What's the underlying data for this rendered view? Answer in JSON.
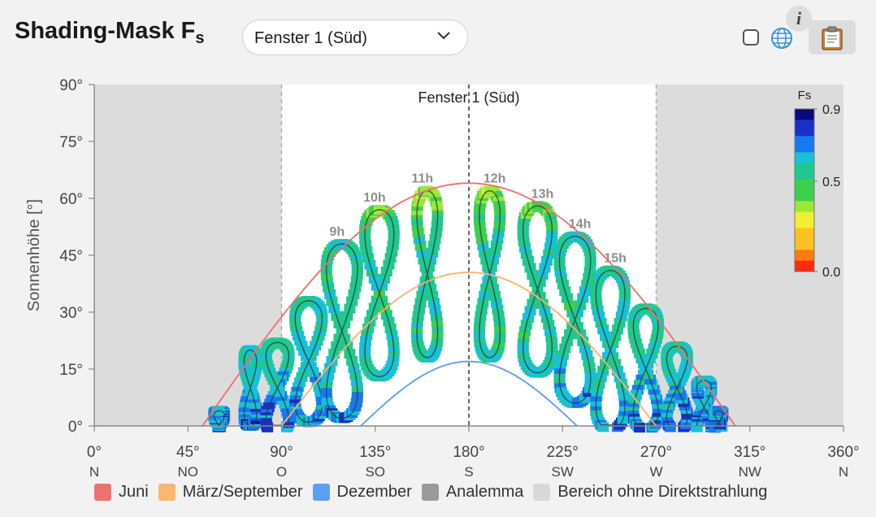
{
  "header": {
    "title_main": "Shading-Mask F",
    "title_sub": "s",
    "window_select": "Fenster 1 (Süd)"
  },
  "toolbar": {
    "checkbox_checked": false,
    "globe_icon": "globe-icon",
    "info_icon": "info-icon",
    "info_label": "i",
    "clipboard_icon": "clipboard-icon"
  },
  "chart_data": {
    "type": "heatmap",
    "title": "Fenster 1 (Süd)",
    "xlabel": "",
    "ylabel": "Sonnenhöhe [°]",
    "xlim": [
      0,
      360
    ],
    "ylim": [
      0,
      90
    ],
    "x_ticks": [
      0,
      45,
      90,
      135,
      180,
      225,
      270,
      315,
      360
    ],
    "x_tick_labels": [
      "0°",
      "45°",
      "90°",
      "135°",
      "180°",
      "225°",
      "270°",
      "315°",
      "360°"
    ],
    "x_direction_labels": [
      "N",
      "NO",
      "O",
      "SO",
      "S",
      "SW",
      "W",
      "NW",
      "N"
    ],
    "y_ticks": [
      0,
      15,
      30,
      45,
      60,
      75,
      90
    ],
    "y_tick_labels": [
      "0°",
      "15°",
      "30°",
      "45°",
      "60°",
      "75°",
      "90°"
    ],
    "no_direct_radiation_ranges": [
      [
        0,
        90
      ],
      [
        270,
        360
      ]
    ],
    "reference_lines_azimuth": [
      90,
      180,
      270
    ],
    "sun_paths": [
      {
        "name": "Juni",
        "color": "#f26b6b",
        "sunrise_az": 52,
        "sunset_az": 308,
        "max_alt": 64
      },
      {
        "name": "März/September",
        "color": "#f7b366",
        "sunrise_az": 90,
        "sunset_az": 270,
        "max_alt": 40.5
      },
      {
        "name": "Dezember",
        "color": "#5b9cf0",
        "sunrise_az": 128,
        "sunset_az": 232,
        "max_alt": 17
      }
    ],
    "analemmas": [
      {
        "label": "",
        "az": 60,
        "alt": 0,
        "daz": 5,
        "dalt": 4
      },
      {
        "label": "",
        "az": 75,
        "alt": 10,
        "daz": 6,
        "dalt": 10
      },
      {
        "label": "",
        "az": 88,
        "alt": 10,
        "daz": 11,
        "dalt": 12
      },
      {
        "label": "",
        "az": 103,
        "alt": 17,
        "daz": 13,
        "dalt": 16
      },
      {
        "label": "9h",
        "az": 119,
        "alt": 25,
        "daz": 15,
        "dalt": 23
      },
      {
        "label": "10h",
        "az": 137,
        "alt": 35,
        "daz": 14,
        "dalt": 22
      },
      {
        "label": "11h",
        "az": 160,
        "alt": 40,
        "daz": 10,
        "dalt": 22
      },
      {
        "label": "12h",
        "az": 190,
        "alt": 40,
        "daz": 10,
        "dalt": 22
      },
      {
        "label": "13h",
        "az": 213,
        "alt": 36,
        "daz": 14,
        "dalt": 22
      },
      {
        "label": "14h",
        "az": 231,
        "alt": 28,
        "daz": 15,
        "dalt": 22
      },
      {
        "label": "15h",
        "az": 248,
        "alt": 20,
        "daz": 14,
        "dalt": 21
      },
      {
        "label": "",
        "az": 265,
        "alt": 15,
        "daz": 12,
        "dalt": 16
      },
      {
        "label": "",
        "az": 280,
        "alt": 10,
        "daz": 10,
        "dalt": 11
      },
      {
        "label": "",
        "az": 293,
        "alt": 5,
        "daz": 7,
        "dalt": 7
      },
      {
        "label": "",
        "az": 300,
        "alt": 1,
        "daz": 4,
        "dalt": 3
      }
    ],
    "colorbar": {
      "label": "Fs",
      "min": 0.0,
      "mid": 0.5,
      "max": 0.9,
      "tick_labels": [
        "0.9",
        "0.5",
        "0.0"
      ],
      "colors": [
        "#ff2a10",
        "#ff7a10",
        "#ffc020",
        "#f0f030",
        "#9ae83a",
        "#3cd050",
        "#20c890",
        "#18c0d8",
        "#1878ee",
        "#1a2fc8",
        "#0a0a7a"
      ]
    },
    "legend": [
      "Juni",
      "März/September",
      "Dezember",
      "Analemma",
      "Bereich ohne Direktstrahlung"
    ]
  },
  "legend": {
    "items": [
      {
        "label": "Juni",
        "color": "#f07070"
      },
      {
        "label": "März/September",
        "color": "#f8b870"
      },
      {
        "label": "Dezember",
        "color": "#5c9ef2"
      },
      {
        "label": "Analemma",
        "color": "#9a9a9a"
      },
      {
        "label": "Bereich ohne Direktstrahlung",
        "color": "#d8d8d8"
      }
    ]
  }
}
